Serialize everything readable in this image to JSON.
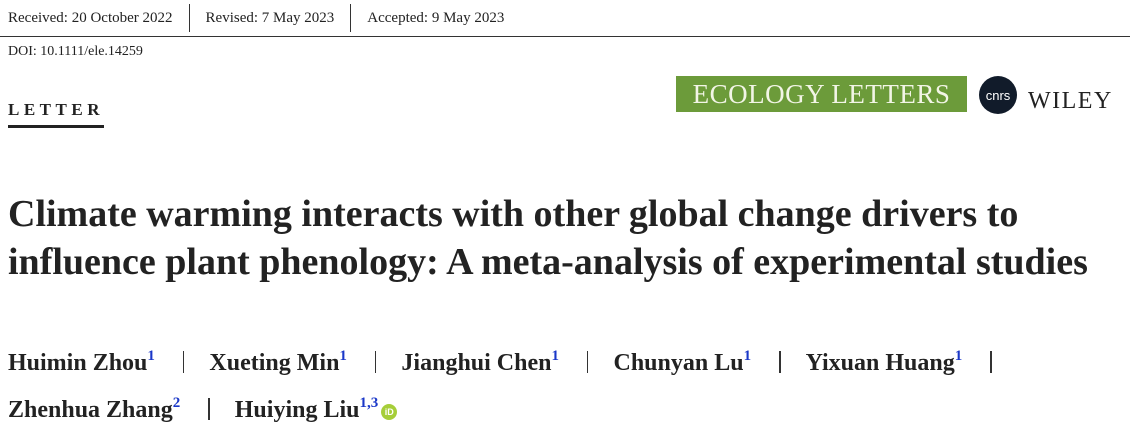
{
  "header": {
    "received": "Received: 20 October 2022",
    "revised": "Revised: 7 May 2023",
    "accepted": "Accepted: 9 May 2023",
    "doi": "DOI: 10.1111/ele.14259"
  },
  "section": "LETTER",
  "journal": "ECOLOGY LETTERS",
  "cnrs": "cnrs",
  "publisher": "WILEY",
  "title": "Climate warming interacts with other global change drivers to influence plant phenology: A meta-analysis of experimental studies",
  "authors": [
    {
      "name": "Huimin Zhou",
      "affiliation": "1"
    },
    {
      "name": "Xueting Min",
      "affiliation": "1"
    },
    {
      "name": "Jianghui Chen",
      "affiliation": "1"
    },
    {
      "name": "Chunyan Lu",
      "affiliation": "1"
    },
    {
      "name": "Yixuan Huang",
      "affiliation": "1"
    },
    {
      "name": "Zhenhua Zhang",
      "affiliation": "2"
    },
    {
      "name": "Huiying Liu",
      "affiliation": "1,3",
      "orcid": "iD"
    }
  ]
}
